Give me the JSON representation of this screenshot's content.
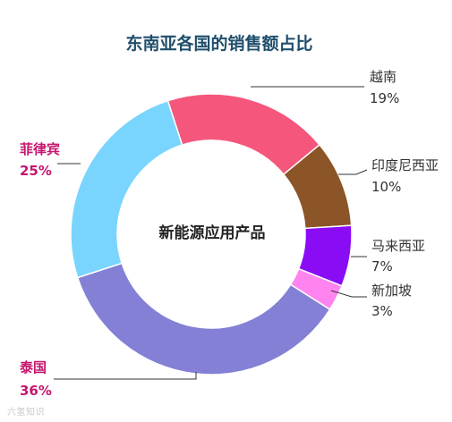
{
  "chart_data": {
    "type": "pie",
    "variant": "donut",
    "title": "东南亚各国的销售额占比",
    "center_label": "新能源应用产品",
    "slices": [
      {
        "name": "越南",
        "value": 19,
        "label": "19%",
        "color": "#f5577c"
      },
      {
        "name": "印度尼西亚",
        "value": 10,
        "label": "10%",
        "color": "#8b5527"
      },
      {
        "name": "马来西亚",
        "value": 7,
        "label": "7%",
        "color": "#8a0cf5"
      },
      {
        "name": "新加坡",
        "value": 3,
        "label": "3%",
        "color": "#ff84f0"
      },
      {
        "name": "泰国",
        "value": 36,
        "label": "36%",
        "color": "#8380d6"
      },
      {
        "name": "菲律宾",
        "value": 25,
        "label": "25%",
        "color": "#7ad5fe"
      }
    ]
  },
  "watermark": "六氢知识"
}
